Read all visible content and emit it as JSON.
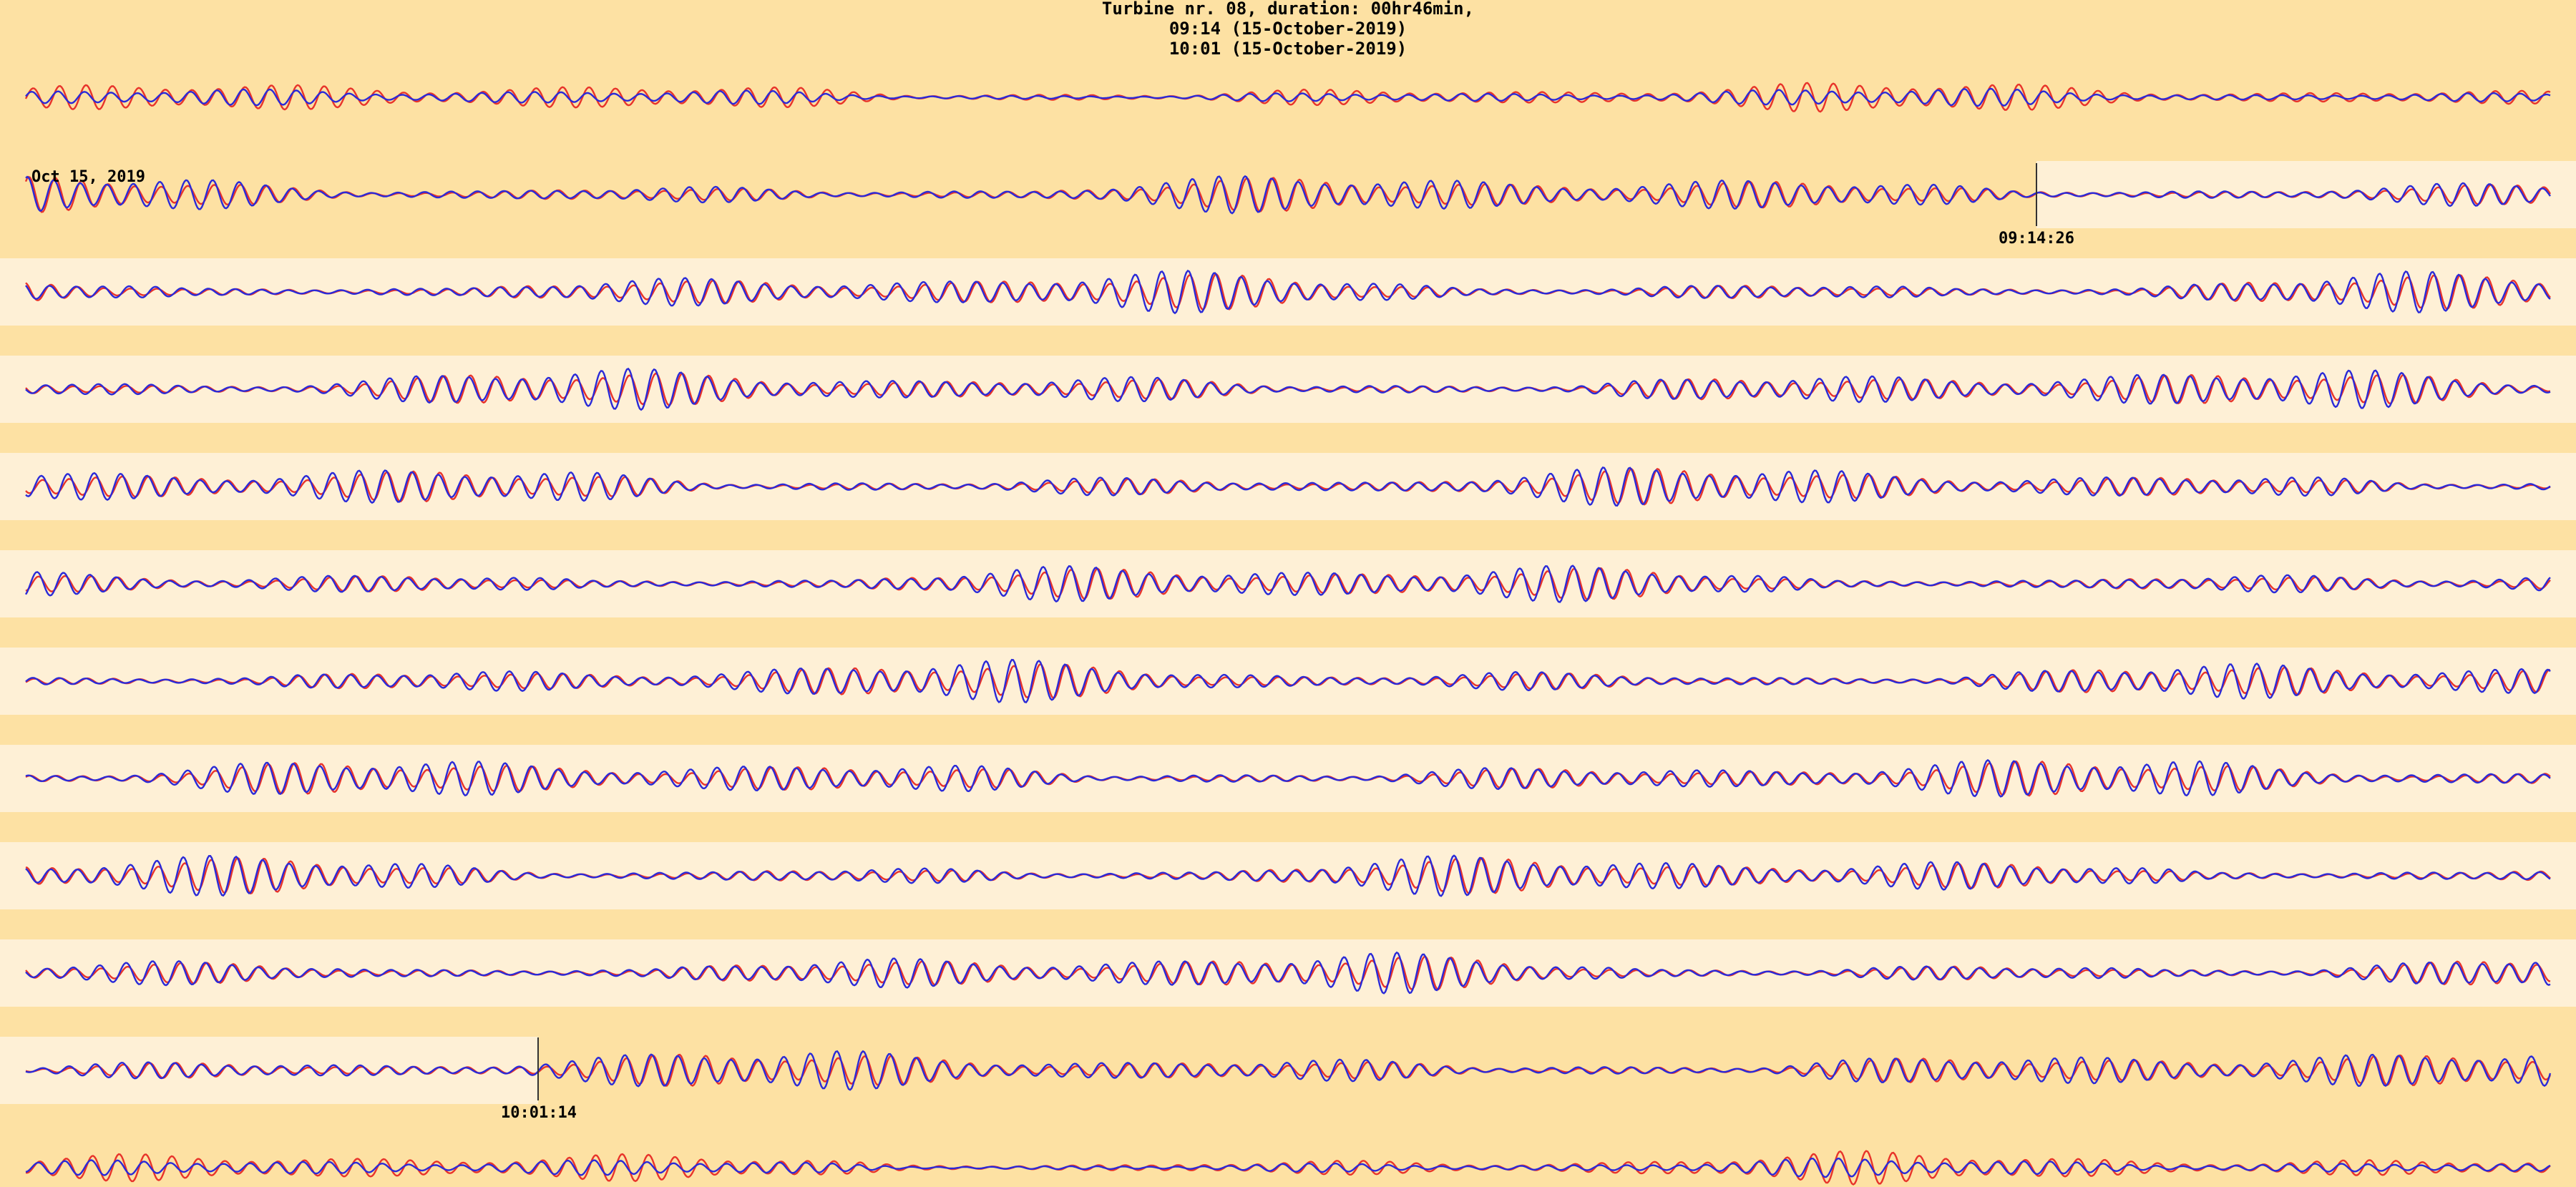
{
  "title": {
    "line1": "Turbine nr. 08,  duration: 00hr46min,",
    "line2": "09:14 (15-October-2019)",
    "line3": "10:01 (15-October-2019)"
  },
  "labels": {
    "date": "Oct 15, 2019",
    "start_time": "09:14:26",
    "end_time": "10:01:14"
  },
  "colors": {
    "background": "#fde1a3",
    "band": "#fef0d6",
    "series_red": "#e8332a",
    "series_blue": "#2a2ad8",
    "marker": "#333333"
  },
  "chart_data": {
    "type": "line",
    "title": "Turbine nr. 08,  duration: 00hr46min,",
    "start": "09:14:26",
    "end": "10:01:14",
    "rows": 12,
    "series": [
      {
        "color": "#e8332a"
      },
      {
        "color": "#2a2ad8"
      }
    ],
    "grid": false,
    "legend": "none"
  }
}
